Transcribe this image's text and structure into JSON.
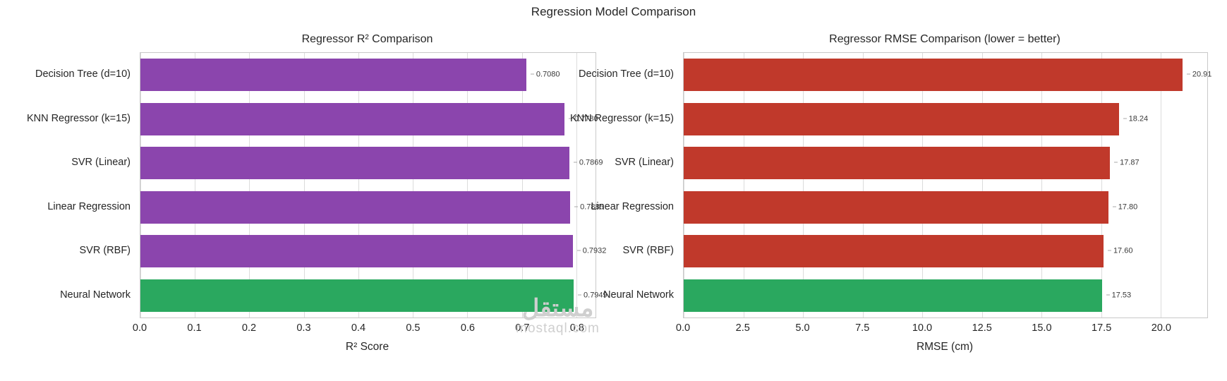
{
  "figure": {
    "title": "Regression Model Comparison"
  },
  "watermark": {
    "arabic": "مستقل",
    "latin": "mostaql.com"
  },
  "chart_data": [
    {
      "type": "bar",
      "orientation": "horizontal",
      "title": "Regressor R² Comparison",
      "categories": [
        "Decision Tree (d=10)",
        "KNN Regressor (k=15)",
        "SVR (Linear)",
        "Linear Regression",
        "SVR (RBF)",
        "Neural Network"
      ],
      "values": [
        0.708,
        0.778,
        0.7869,
        0.7885,
        0.7932,
        0.7949
      ],
      "value_labels": [
        "0.7080",
        "0.7780",
        "0.7869",
        "0.7885",
        "0.7932",
        "0.7949"
      ],
      "bar_colors": [
        "#8b45ad",
        "#8b45ad",
        "#8b45ad",
        "#8b45ad",
        "#8b45ad",
        "#2aa85f"
      ],
      "xlabel": "R² Score",
      "xlim": [
        0,
        0.835
      ],
      "xtick_values": [
        0.0,
        0.1,
        0.2,
        0.3,
        0.4,
        0.5,
        0.6,
        0.7,
        0.8
      ],
      "xtick_labels": [
        "0.0",
        "0.1",
        "0.2",
        "0.3",
        "0.4",
        "0.5",
        "0.6",
        "0.7",
        "0.8"
      ],
      "grid": true,
      "legend": "none"
    },
    {
      "type": "bar",
      "orientation": "horizontal",
      "title": "Regressor RMSE Comparison (lower = better)",
      "categories": [
        "Decision Tree (d=10)",
        "KNN Regressor (k=15)",
        "SVR (Linear)",
        "Linear Regression",
        "SVR (RBF)",
        "Neural Network"
      ],
      "values": [
        20.91,
        18.24,
        17.87,
        17.8,
        17.6,
        17.53
      ],
      "value_labels": [
        "20.91",
        "18.24",
        "17.87",
        "17.80",
        "17.60",
        "17.53"
      ],
      "bar_colors": [
        "#c0392b",
        "#c0392b",
        "#c0392b",
        "#c0392b",
        "#c0392b",
        "#2aa85f"
      ],
      "xlabel": "RMSE (cm)",
      "xlim": [
        0,
        21.95
      ],
      "xtick_values": [
        0.0,
        2.5,
        5.0,
        7.5,
        10.0,
        12.5,
        15.0,
        17.5,
        20.0
      ],
      "xtick_labels": [
        "0.0",
        "2.5",
        "5.0",
        "7.5",
        "10.0",
        "12.5",
        "15.0",
        "17.5",
        "20.0"
      ],
      "grid": true,
      "legend": "none"
    }
  ]
}
